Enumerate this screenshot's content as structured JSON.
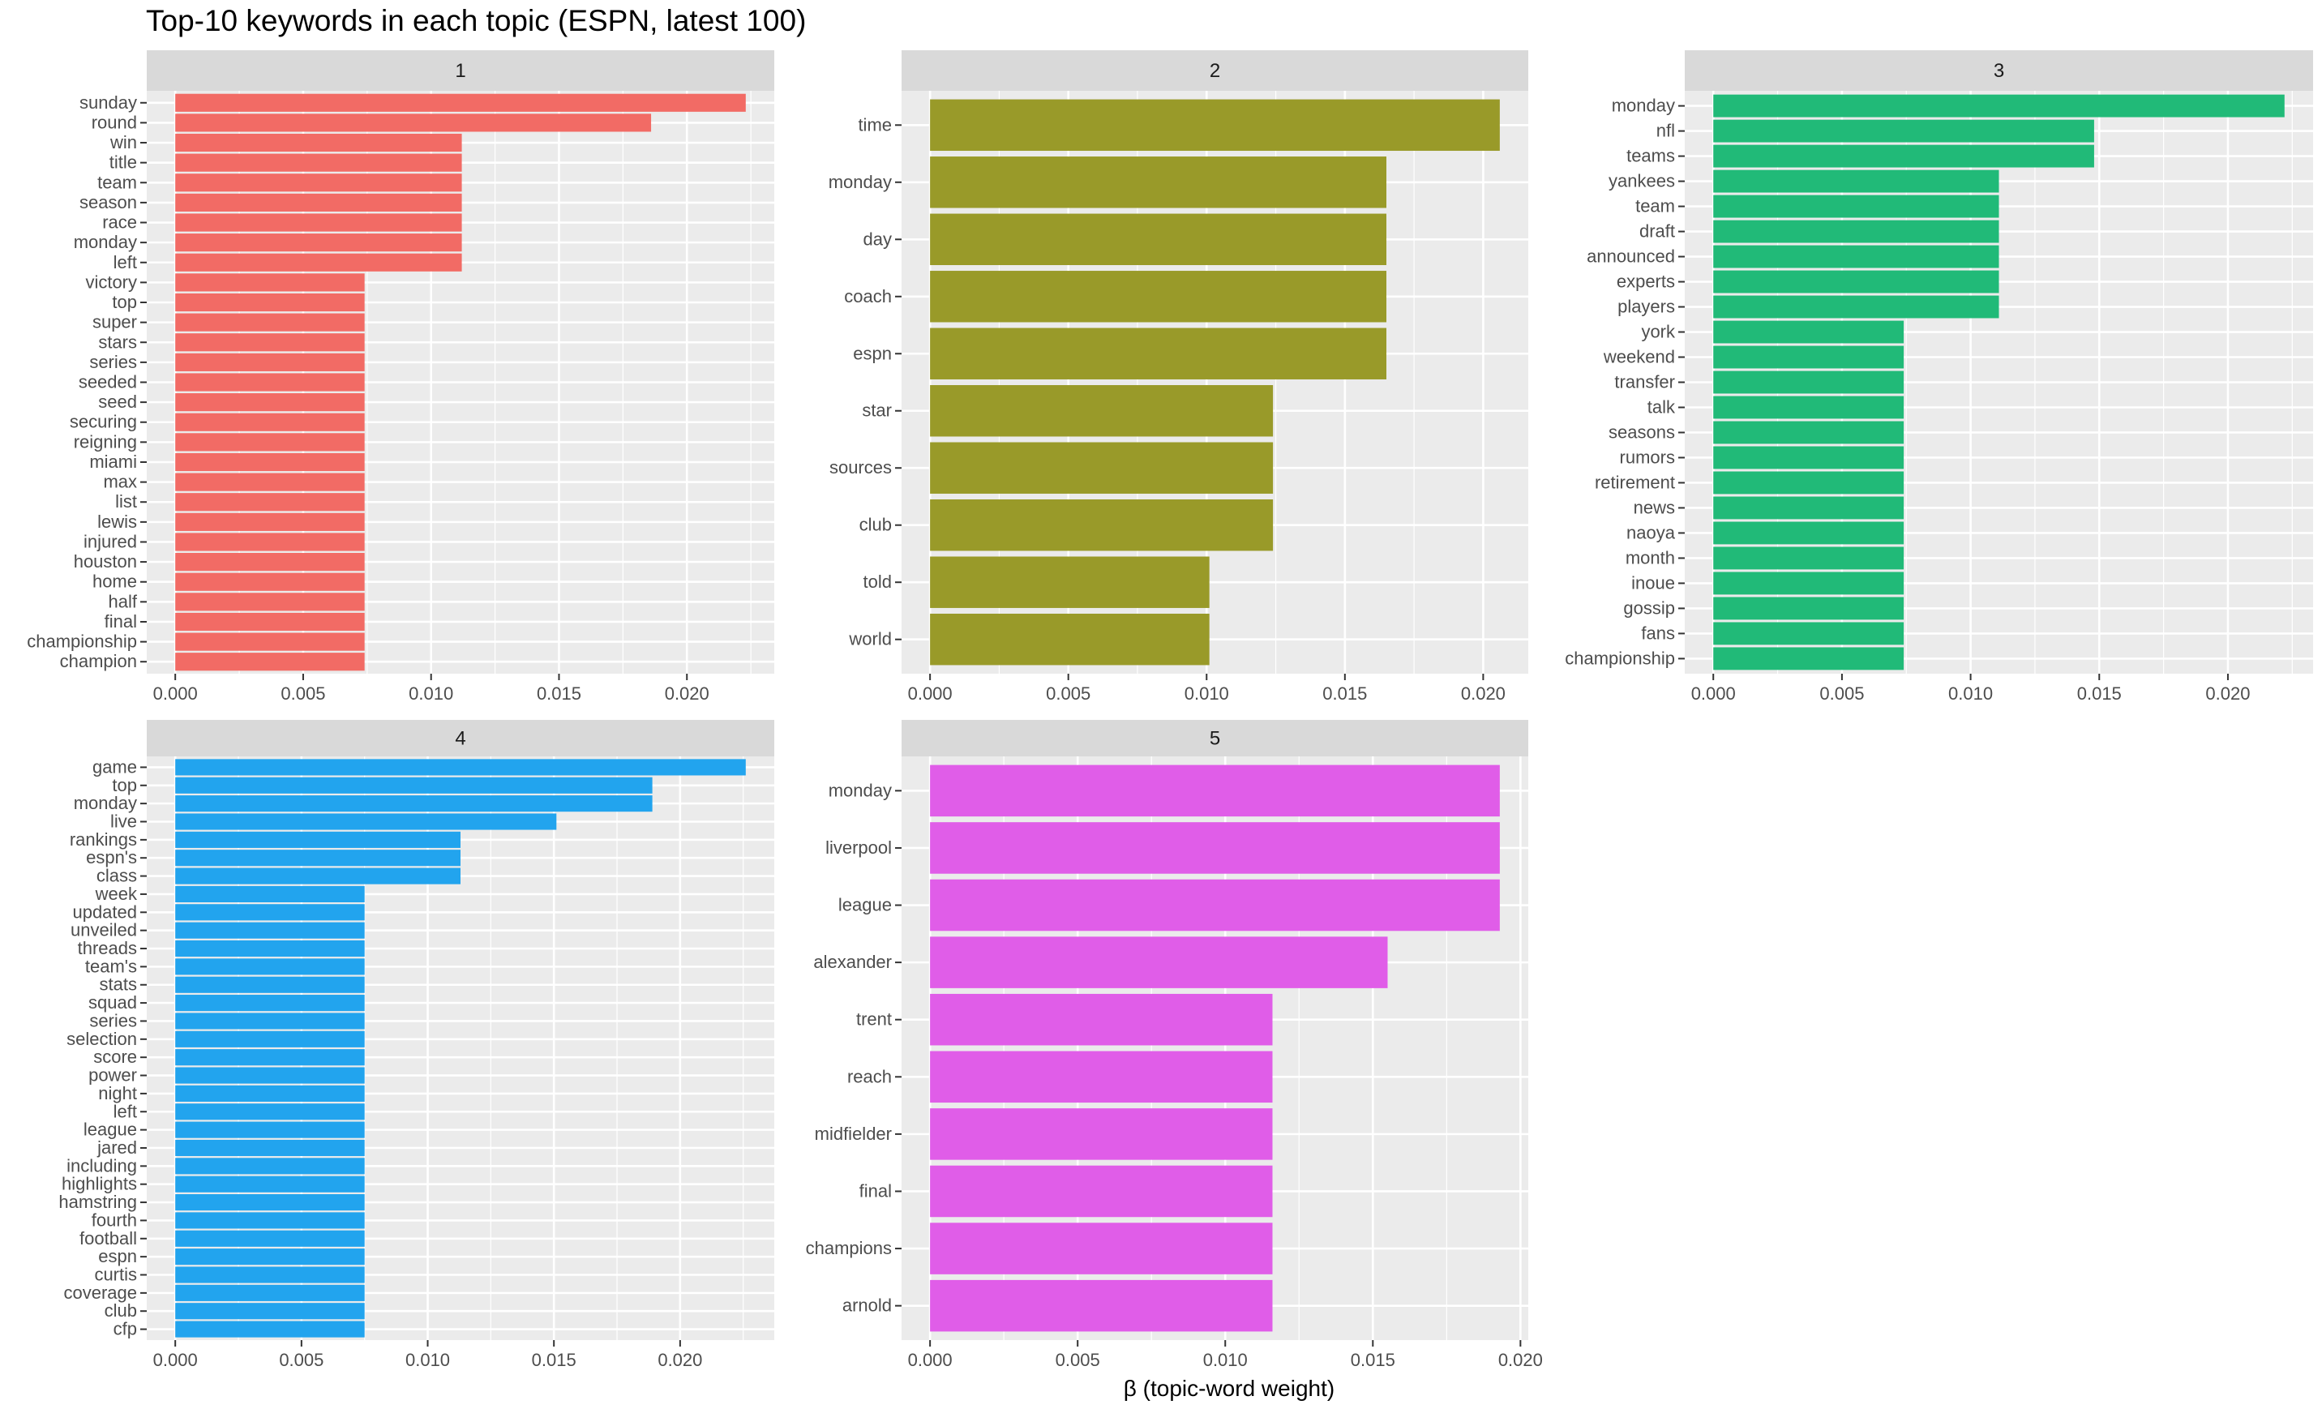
{
  "chart_data": {
    "type": "bar",
    "orientation": "horizontal",
    "title": "Top-10 keywords in each topic (ESPN, latest 100)",
    "xlabel": "β (topic-word weight)",
    "ylabel": "",
    "grid": true,
    "x_ticks": [
      0,
      0.005,
      0.01,
      0.015,
      0.02
    ],
    "x_tick_labels": [
      "0.000",
      "0.005",
      "0.010",
      "0.015",
      "0.020"
    ],
    "panels": [
      {
        "strip": "1",
        "color": "#F26B65",
        "categories": [
          "sunday",
          "round",
          "win",
          "title",
          "team",
          "season",
          "race",
          "monday",
          "left",
          "victory",
          "top",
          "super",
          "stars",
          "series",
          "seeded",
          "seed",
          "securing",
          "reigning",
          "miami",
          "max",
          "list",
          "lewis",
          "injured",
          "houston",
          "home",
          "half",
          "final",
          "championship",
          "champion"
        ],
        "values": [
          0.0223,
          0.0186,
          0.0112,
          0.0112,
          0.0112,
          0.0112,
          0.0112,
          0.0112,
          0.0112,
          0.0074,
          0.0074,
          0.0074,
          0.0074,
          0.0074,
          0.0074,
          0.0074,
          0.0074,
          0.0074,
          0.0074,
          0.0074,
          0.0074,
          0.0074,
          0.0074,
          0.0074,
          0.0074,
          0.0074,
          0.0074,
          0.0074,
          0.0074
        ]
      },
      {
        "strip": "2",
        "color": "#999A29",
        "categories": [
          "time",
          "monday",
          "day",
          "coach",
          "espn",
          "star",
          "sources",
          "club",
          "told",
          "world"
        ],
        "values": [
          0.0206,
          0.0165,
          0.0165,
          0.0165,
          0.0165,
          0.0124,
          0.0124,
          0.0124,
          0.0101,
          0.0101
        ]
      },
      {
        "strip": "3",
        "color": "#21BA78",
        "categories": [
          "monday",
          "nfl",
          "teams",
          "yankees",
          "team",
          "draft",
          "announced",
          "experts",
          "players",
          "york",
          "weekend",
          "transfer",
          "talk",
          "seasons",
          "rumors",
          "retirement",
          "news",
          "naoya",
          "month",
          "inoue",
          "gossip",
          "fans",
          "championship"
        ],
        "values": [
          0.0222,
          0.0148,
          0.0148,
          0.0111,
          0.0111,
          0.0111,
          0.0111,
          0.0111,
          0.0111,
          0.0074,
          0.0074,
          0.0074,
          0.0074,
          0.0074,
          0.0074,
          0.0074,
          0.0074,
          0.0074,
          0.0074,
          0.0074,
          0.0074,
          0.0074,
          0.0074
        ]
      },
      {
        "strip": "4",
        "color": "#22A4EE",
        "categories": [
          "game",
          "top",
          "monday",
          "live",
          "rankings",
          "espn's",
          "class",
          "week",
          "updated",
          "unveiled",
          "threads",
          "team's",
          "stats",
          "squad",
          "series",
          "selection",
          "score",
          "power",
          "night",
          "left",
          "league",
          "jared",
          "including",
          "highlights",
          "hamstring",
          "fourth",
          "football",
          "espn",
          "curtis",
          "coverage",
          "club",
          "cfp"
        ],
        "values": [
          0.0226,
          0.0189,
          0.0189,
          0.0151,
          0.0113,
          0.0113,
          0.0113,
          0.0075,
          0.0075,
          0.0075,
          0.0075,
          0.0075,
          0.0075,
          0.0075,
          0.0075,
          0.0075,
          0.0075,
          0.0075,
          0.0075,
          0.0075,
          0.0075,
          0.0075,
          0.0075,
          0.0075,
          0.0075,
          0.0075,
          0.0075,
          0.0075,
          0.0075,
          0.0075,
          0.0075,
          0.0075
        ]
      },
      {
        "strip": "5",
        "color": "#E05DE8",
        "categories": [
          "monday",
          "liverpool",
          "league",
          "alexander",
          "trent",
          "reach",
          "midfielder",
          "final",
          "champions",
          "arnold"
        ],
        "values": [
          0.0193,
          0.0193,
          0.0193,
          0.0155,
          0.0116,
          0.0116,
          0.0116,
          0.0116,
          0.0116,
          0.0116
        ]
      }
    ]
  }
}
